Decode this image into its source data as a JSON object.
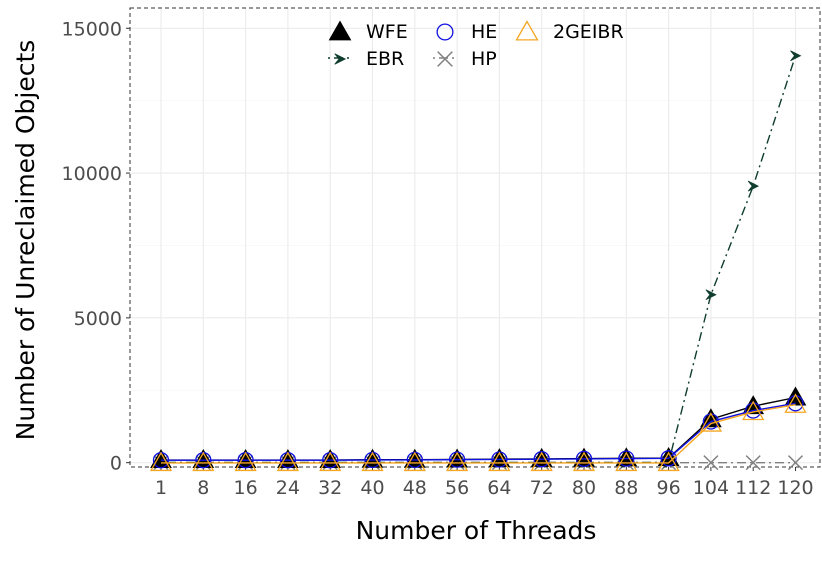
{
  "chart_data": {
    "type": "line",
    "xlabel": "Number of Threads",
    "ylabel": "Number of Unreclaimed Objects",
    "categories": [
      "1",
      "8",
      "16",
      "24",
      "32",
      "40",
      "48",
      "56",
      "64",
      "72",
      "80",
      "88",
      "96",
      "104",
      "112",
      "120"
    ],
    "ylim": [
      -150,
      15700
    ],
    "yticks": [
      0,
      5000,
      10000,
      15000
    ],
    "grid": true,
    "legend_position": "top",
    "series": [
      {
        "name": "WFE",
        "color": "#000000",
        "marker": "filled-triangle",
        "line": "solid",
        "values": [
          90,
          90,
          90,
          90,
          90,
          100,
          100,
          110,
          120,
          130,
          140,
          150,
          160,
          1500,
          1950,
          2250
        ]
      },
      {
        "name": "EBR",
        "color": "#0f3d2e",
        "marker": "arrowhead",
        "line": "dotdash",
        "values": [
          5,
          5,
          5,
          5,
          5,
          5,
          5,
          5,
          5,
          5,
          5,
          5,
          5,
          5800,
          9550,
          14050
        ]
      },
      {
        "name": "HE",
        "color": "#1010e0",
        "marker": "open-circle",
        "line": "solid",
        "values": [
          85,
          85,
          85,
          85,
          85,
          95,
          95,
          105,
          110,
          120,
          130,
          140,
          150,
          1420,
          1800,
          2050
        ]
      },
      {
        "name": "HP",
        "color": "#808080",
        "marker": "cross",
        "line": "dotdash",
        "values": [
          0,
          0,
          0,
          0,
          0,
          0,
          0,
          0,
          0,
          0,
          0,
          0,
          0,
          0,
          0,
          0
        ]
      },
      {
        "name": "2GEIBR",
        "color": "#f5a623",
        "marker": "open-triangle",
        "line": "solid",
        "values": [
          -10,
          -10,
          -10,
          -10,
          -10,
          -10,
          -10,
          -10,
          -10,
          -10,
          -10,
          -10,
          -10,
          1350,
          1750,
          2000
        ]
      }
    ]
  }
}
